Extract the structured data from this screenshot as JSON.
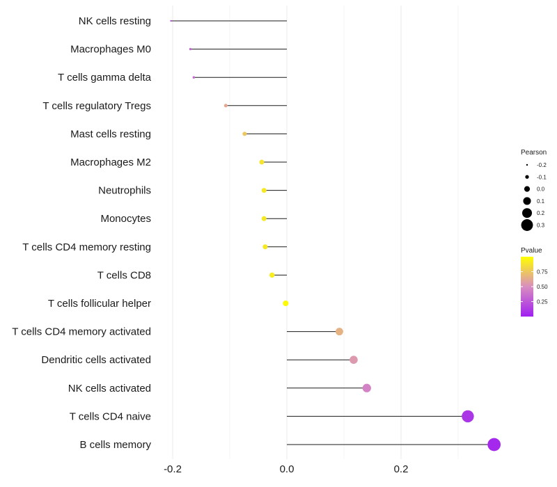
{
  "chart_data": {
    "type": "lollipop",
    "title": "",
    "xlabel": "",
    "ylabel": "",
    "xlim": [
      -0.205,
      0.36
    ],
    "x_ticks": [
      -0.2,
      0.0,
      0.2
    ],
    "x_tick_labels": [
      "-0.2",
      "0.0",
      "0.2"
    ],
    "grid": true,
    "categories": [
      "NK cells resting",
      "Macrophages M0",
      "T cells gamma delta",
      "T cells regulatory  Tregs",
      "Mast cells resting",
      "Macrophages M2",
      "Neutrophils",
      "Monocytes",
      "T cells CD4 memory resting",
      "T cells CD8",
      "T cells follicular helper",
      "T cells CD4 memory activated",
      "Dendritic cells activated",
      "NK cells activated",
      "T cells CD4 naive",
      "B cells memory"
    ],
    "pearson": [
      -0.203,
      -0.169,
      -0.163,
      -0.107,
      -0.074,
      -0.044,
      -0.04,
      -0.04,
      -0.038,
      -0.026,
      -0.002,
      0.092,
      0.117,
      0.14,
      0.317,
      0.363
    ],
    "pvalue": [
      0.18,
      0.3,
      0.33,
      0.62,
      0.75,
      0.88,
      0.9,
      0.9,
      0.9,
      0.92,
      0.98,
      0.66,
      0.55,
      0.45,
      0.1,
      0.04
    ],
    "legend": {
      "placement": "right",
      "size_title": "Pearson",
      "size_values": [
        -0.2,
        -0.1,
        0.0,
        0.1,
        0.2,
        0.3
      ],
      "size_labels": [
        "-0.2",
        "-0.1",
        "0.0",
        "0.1",
        "0.2",
        "0.3"
      ],
      "color_title": "Pvalue",
      "color_values": [
        0.75,
        0.5,
        0.25
      ],
      "color_labels": [
        "0.75",
        "0.50",
        "0.25"
      ],
      "color_low": "#a020f0",
      "color_mid": "#d98ec0",
      "color_high": "#ffff00"
    }
  }
}
